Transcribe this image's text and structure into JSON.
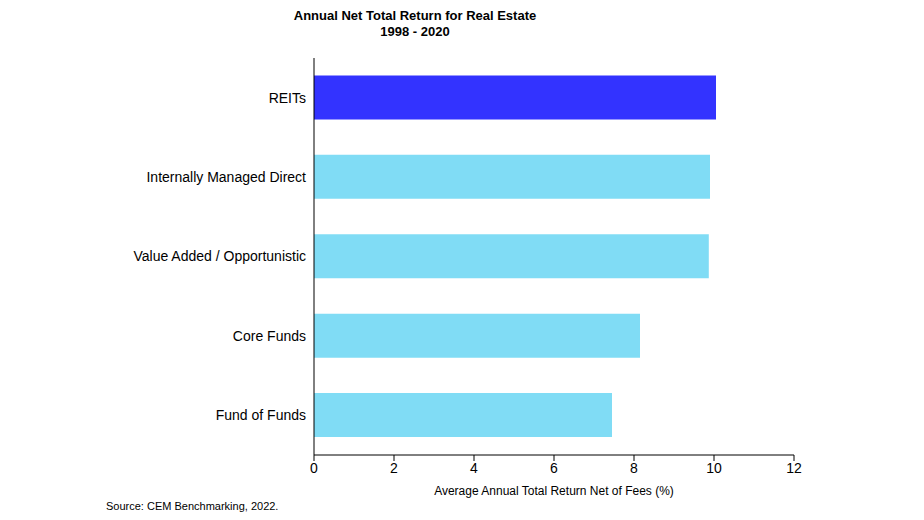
{
  "chart_data": {
    "type": "bar",
    "orientation": "horizontal",
    "title": "Annual Net Total Return for Real Estate",
    "subtitle": "1998 - 2020",
    "x_label": "Average Annual Total Return Net of Fees (%)",
    "source": "Source: CEM Benchmarking, 2022.",
    "categories": [
      "REITs",
      "Internally Managed Direct",
      "Value Added / Opportunistic",
      "Core Funds",
      "Fund of Funds"
    ],
    "values": [
      10.05,
      9.9,
      9.87,
      8.15,
      7.45
    ],
    "colors": [
      "#3333ff",
      "#80dcf5",
      "#80dcf5",
      "#80dcf5",
      "#80dcf5"
    ],
    "xlim": [
      0,
      12
    ],
    "xticks": [
      0,
      2,
      4,
      6,
      8,
      10,
      12
    ],
    "grid": false
  }
}
